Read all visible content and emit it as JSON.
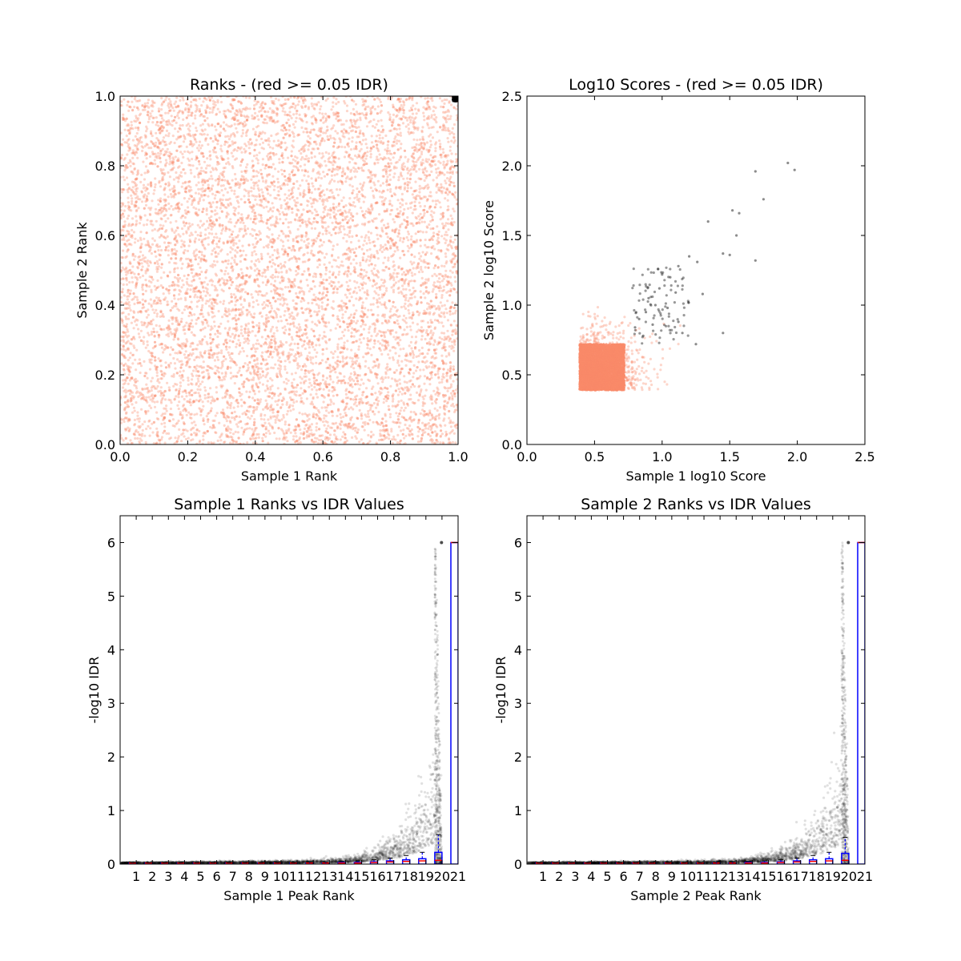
{
  "figure": {
    "background": "#ffffff",
    "colors": {
      "red_points": "#fa8a6a",
      "black_points": "#000000",
      "box": "#0000ff",
      "median": "#ff0000"
    }
  },
  "chart_data": [
    {
      "type": "scatter",
      "title": "Ranks - (red >= 0.05 IDR)",
      "xlabel": "Sample 1 Rank",
      "ylabel": "Sample 2 Rank",
      "xlim": [
        0.0,
        1.0
      ],
      "ylim": [
        0.0,
        1.0
      ],
      "xticks": [
        "0.0",
        "0.2",
        "0.4",
        "0.6",
        "0.8",
        "1.0"
      ],
      "yticks": [
        "0.0",
        "0.2",
        "0.4",
        "0.6",
        "0.8",
        "1.0"
      ],
      "series": [
        {
          "name": "red >= 0.05 IDR",
          "color": "#fa8a6a",
          "region": "uniform",
          "x_range": [
            0.0,
            1.0
          ],
          "y_range": [
            0.0,
            1.0
          ],
          "n": 9000
        },
        {
          "color": "#000000",
          "region": "top-right",
          "x_range": [
            0.985,
            1.0
          ],
          "y_range": [
            0.985,
            1.0
          ],
          "n": 80
        }
      ]
    },
    {
      "type": "scatter",
      "title": "Log10 Scores - (red >= 0.05 IDR)",
      "xlabel": "Sample 1 log10 Score",
      "ylabel": "Sample 2 log10 Score",
      "xlim": [
        0.0,
        2.5
      ],
      "ylim": [
        0.0,
        2.5
      ],
      "xticks": [
        "0.0",
        "0.5",
        "1.0",
        "1.5",
        "2.0",
        "2.5"
      ],
      "yticks": [
        "0.0",
        "0.5",
        "1.0",
        "1.5",
        "2.0",
        "2.5"
      ],
      "series": [
        {
          "name": "red >= 0.05 IDR",
          "color": "#fa8a6a",
          "dense_x_range": [
            0.38,
            0.72
          ],
          "dense_y_range": [
            0.38,
            0.8
          ],
          "n": 4500
        },
        {
          "color": "#000000",
          "points": [
            [
              1.93,
              2.02
            ],
            [
              1.98,
              1.97
            ],
            [
              1.69,
              1.96
            ],
            [
              1.75,
              1.76
            ],
            [
              1.52,
              1.68
            ],
            [
              1.57,
              1.66
            ],
            [
              1.34,
              1.6
            ],
            [
              1.55,
              1.5
            ],
            [
              1.69,
              1.32
            ],
            [
              1.26,
              1.31
            ],
            [
              1.45,
              1.37
            ],
            [
              1.5,
              1.36
            ],
            [
              1.2,
              1.35
            ],
            [
              1.12,
              1.28
            ],
            [
              1.0,
              1.22
            ],
            [
              1.06,
              1.2
            ],
            [
              0.98,
              1.12
            ],
            [
              1.1,
              1.09
            ],
            [
              1.3,
              1.08
            ],
            [
              0.9,
              1.05
            ],
            [
              0.95,
              1.0
            ],
            [
              1.04,
              0.98
            ],
            [
              0.88,
              0.95
            ],
            [
              0.83,
              0.9
            ],
            [
              1.12,
              0.88
            ],
            [
              0.93,
              0.86
            ],
            [
              1.15,
              0.8
            ],
            [
              1.25,
              0.72
            ],
            [
              1.45,
              0.8
            ],
            [
              0.86,
              0.78
            ],
            [
              0.8,
              0.84
            ]
          ],
          "n_extra": 90
        }
      ]
    },
    {
      "type": "scatter",
      "title": "Sample 1 Ranks vs IDR Values",
      "xlabel": "Sample 1 Peak Rank",
      "ylabel": "-log10 IDR",
      "xlim": [
        0,
        21
      ],
      "ylim": [
        0,
        6.5
      ],
      "xticks": [
        "1",
        "2",
        "3",
        "4",
        "5",
        "6",
        "7",
        "8",
        "9",
        "10",
        "11",
        "12",
        "13",
        "14",
        "15",
        "16",
        "17",
        "18",
        "19",
        "20",
        "21"
      ],
      "yticks": [
        "0",
        "1",
        "2",
        "3",
        "4",
        "5",
        "6"
      ],
      "box_medians": [
        0.02,
        0.02,
        0.02,
        0.02,
        0.02,
        0.02,
        0.02,
        0.02,
        0.02,
        0.02,
        0.02,
        0.02,
        0.02,
        0.02,
        0.02,
        0.03,
        0.04,
        0.05,
        0.06,
        0.07,
        6.0
      ],
      "box_q3": [
        0.02,
        0.02,
        0.02,
        0.02,
        0.02,
        0.02,
        0.02,
        0.02,
        0.02,
        0.02,
        0.02,
        0.02,
        0.02,
        0.03,
        0.03,
        0.04,
        0.06,
        0.08,
        0.1,
        0.22,
        6.0
      ],
      "box_whisker_top": [
        0.03,
        0.03,
        0.03,
        0.03,
        0.03,
        0.03,
        0.03,
        0.03,
        0.03,
        0.03,
        0.03,
        0.04,
        0.04,
        0.05,
        0.06,
        0.08,
        0.11,
        0.16,
        0.22,
        0.55,
        6.0
      ]
    },
    {
      "type": "scatter",
      "title": "Sample 2 Ranks vs IDR Values",
      "xlabel": "Sample 2 Peak Rank",
      "ylabel": "-log10 IDR",
      "xlim": [
        0,
        21
      ],
      "ylim": [
        0,
        6.5
      ],
      "xticks": [
        "1",
        "2",
        "3",
        "4",
        "5",
        "6",
        "7",
        "8",
        "9",
        "10",
        "11",
        "12",
        "13",
        "14",
        "15",
        "16",
        "17",
        "18",
        "19",
        "20",
        "21"
      ],
      "yticks": [
        "0",
        "1",
        "2",
        "3",
        "4",
        "5",
        "6"
      ],
      "box_medians": [
        0.02,
        0.02,
        0.02,
        0.02,
        0.02,
        0.02,
        0.02,
        0.02,
        0.02,
        0.02,
        0.02,
        0.02,
        0.02,
        0.02,
        0.02,
        0.03,
        0.04,
        0.05,
        0.06,
        0.07,
        6.0
      ],
      "box_q3": [
        0.02,
        0.02,
        0.02,
        0.02,
        0.02,
        0.02,
        0.02,
        0.02,
        0.02,
        0.02,
        0.02,
        0.02,
        0.02,
        0.03,
        0.03,
        0.04,
        0.06,
        0.08,
        0.1,
        0.2,
        6.0
      ],
      "box_whisker_top": [
        0.03,
        0.03,
        0.03,
        0.03,
        0.03,
        0.03,
        0.03,
        0.03,
        0.03,
        0.03,
        0.03,
        0.04,
        0.04,
        0.05,
        0.06,
        0.08,
        0.11,
        0.16,
        0.22,
        0.5,
        6.0
      ]
    }
  ]
}
